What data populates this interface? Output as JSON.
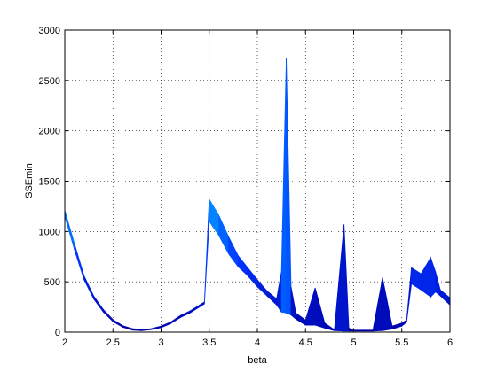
{
  "chart_data": {
    "type": "area",
    "title": "",
    "xlabel": "beta",
    "ylabel": "SSEmin",
    "xlim": [
      2,
      6
    ],
    "ylim": [
      0,
      3000
    ],
    "xticks": [
      2,
      2.5,
      3,
      3.5,
      4,
      4.5,
      5,
      5.5,
      6
    ],
    "xtick_labels": [
      "2",
      "2.5",
      "3",
      "3.5",
      "4",
      "4.5",
      "5",
      "5.5",
      "6"
    ],
    "yticks": [
      0,
      500,
      1000,
      1500,
      2000,
      2500,
      3000
    ],
    "ytick_labels": [
      "0",
      "500",
      "1000",
      "1500",
      "2000",
      "2500",
      "3000"
    ],
    "grid": true,
    "colormap": [
      "#0000a8",
      "#0033ff",
      "#00b4ff",
      "#33ffd8",
      "#7a0040"
    ],
    "series": [
      {
        "name": "",
        "upper": [
          [
            2.0,
            1210
          ],
          [
            2.1,
            880
          ],
          [
            2.2,
            560
          ],
          [
            2.3,
            360
          ],
          [
            2.4,
            225
          ],
          [
            2.5,
            125
          ],
          [
            2.6,
            65
          ],
          [
            2.7,
            35
          ],
          [
            2.8,
            25
          ],
          [
            2.9,
            35
          ],
          [
            3.0,
            60
          ],
          [
            3.1,
            100
          ],
          [
            3.2,
            165
          ],
          [
            3.3,
            210
          ],
          [
            3.4,
            270
          ],
          [
            3.45,
            300
          ],
          [
            3.5,
            1320
          ],
          [
            3.6,
            1160
          ],
          [
            3.7,
            950
          ],
          [
            3.8,
            760
          ],
          [
            3.9,
            640
          ],
          [
            4.0,
            520
          ],
          [
            4.1,
            410
          ],
          [
            4.2,
            330
          ],
          [
            4.25,
            600
          ],
          [
            4.3,
            2720
          ],
          [
            4.35,
            450
          ],
          [
            4.4,
            190
          ],
          [
            4.5,
            120
          ],
          [
            4.6,
            440
          ],
          [
            4.7,
            90
          ],
          [
            4.8,
            25
          ],
          [
            4.9,
            1070
          ],
          [
            4.95,
            40
          ],
          [
            5.0,
            20
          ],
          [
            5.1,
            20
          ],
          [
            5.2,
            20
          ],
          [
            5.3,
            540
          ],
          [
            5.4,
            60
          ],
          [
            5.5,
            90
          ],
          [
            5.55,
            120
          ],
          [
            5.6,
            640
          ],
          [
            5.7,
            580
          ],
          [
            5.8,
            740
          ],
          [
            5.85,
            600
          ],
          [
            5.9,
            420
          ],
          [
            6.0,
            340
          ]
        ],
        "lower": [
          [
            2.0,
            1150
          ],
          [
            2.1,
            820
          ],
          [
            2.2,
            520
          ],
          [
            2.3,
            330
          ],
          [
            2.4,
            200
          ],
          [
            2.5,
            105
          ],
          [
            2.6,
            50
          ],
          [
            2.7,
            20
          ],
          [
            2.8,
            15
          ],
          [
            2.9,
            25
          ],
          [
            3.0,
            45
          ],
          [
            3.1,
            85
          ],
          [
            3.2,
            145
          ],
          [
            3.3,
            190
          ],
          [
            3.4,
            250
          ],
          [
            3.45,
            280
          ],
          [
            3.5,
            1100
          ],
          [
            3.6,
            960
          ],
          [
            3.7,
            780
          ],
          [
            3.8,
            650
          ],
          [
            3.9,
            560
          ],
          [
            4.0,
            450
          ],
          [
            4.1,
            360
          ],
          [
            4.2,
            270
          ],
          [
            4.25,
            200
          ],
          [
            4.3,
            190
          ],
          [
            4.35,
            170
          ],
          [
            4.4,
            130
          ],
          [
            4.5,
            70
          ],
          [
            4.6,
            70
          ],
          [
            4.7,
            40
          ],
          [
            4.8,
            15
          ],
          [
            4.9,
            10
          ],
          [
            4.95,
            10
          ],
          [
            5.0,
            10
          ],
          [
            5.1,
            10
          ],
          [
            5.2,
            10
          ],
          [
            5.3,
            15
          ],
          [
            5.4,
            30
          ],
          [
            5.5,
            60
          ],
          [
            5.55,
            100
          ],
          [
            5.6,
            480
          ],
          [
            5.7,
            420
          ],
          [
            5.8,
            350
          ],
          [
            5.85,
            400
          ],
          [
            5.9,
            360
          ],
          [
            6.0,
            270
          ]
        ]
      }
    ]
  }
}
